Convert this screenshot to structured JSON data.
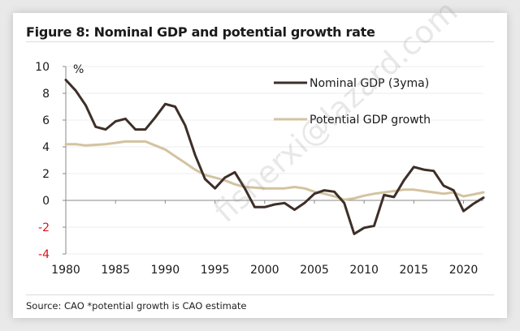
{
  "figure": {
    "title": "Figure 8: Nominal GDP and potential growth rate",
    "source": "Source: CAO *potential growth is CAO estimate",
    "watermark": "fisherxi@lazard.com"
  },
  "colors": {
    "nominal": "#3d2f28",
    "potential": "#d3c3a0",
    "negative_tick": "#e0101a",
    "gridline": "#ececec",
    "axis": "#8a8a8a"
  },
  "chart_data": {
    "type": "line",
    "title": "Figure 8: Nominal GDP and potential growth rate",
    "xlabel": "",
    "ylabel": "%",
    "ylim": [
      -4,
      10
    ],
    "xlim": [
      1980,
      2022
    ],
    "yticks": [
      "10",
      "8",
      "6",
      "4",
      "2",
      "0",
      "-2",
      "-4"
    ],
    "ytick_values": [
      10,
      8,
      6,
      4,
      2,
      0,
      -2,
      -4
    ],
    "xticks": [
      "1980",
      "1985",
      "1990",
      "1995",
      "2000",
      "2005",
      "2010",
      "2015",
      "2020"
    ],
    "xtick_values": [
      1980,
      1985,
      1990,
      1995,
      2000,
      2005,
      2010,
      2015,
      2020
    ],
    "grid": true,
    "legend_position": "top-right",
    "x": [
      1980,
      1981,
      1982,
      1983,
      1984,
      1985,
      1986,
      1987,
      1988,
      1989,
      1990,
      1991,
      1992,
      1993,
      1994,
      1995,
      1996,
      1997,
      1998,
      1999,
      2000,
      2001,
      2002,
      2003,
      2004,
      2005,
      2006,
      2007,
      2008,
      2009,
      2010,
      2011,
      2012,
      2013,
      2014,
      2015,
      2016,
      2017,
      2018,
      2019,
      2020,
      2021,
      2022
    ],
    "series": [
      {
        "name": "Nominal GDP (3yma)",
        "values": [
          9.0,
          8.2,
          7.1,
          5.5,
          5.3,
          5.9,
          6.1,
          5.3,
          5.3,
          6.2,
          7.2,
          7.0,
          5.6,
          3.4,
          1.6,
          0.9,
          1.7,
          2.1,
          0.9,
          -0.5,
          -0.5,
          -0.3,
          -0.2,
          -0.7,
          -0.2,
          0.5,
          0.75,
          0.65,
          -0.2,
          -2.5,
          -2.05,
          -1.9,
          0.4,
          0.25,
          1.5,
          2.5,
          2.3,
          2.2,
          1.1,
          0.75,
          -0.8,
          -0.25,
          0.2
        ]
      },
      {
        "name": "Potential GDP growth",
        "values": [
          4.2,
          4.2,
          4.1,
          4.15,
          4.2,
          4.3,
          4.4,
          4.4,
          4.4,
          4.1,
          3.8,
          3.3,
          2.8,
          2.3,
          1.9,
          1.7,
          1.5,
          1.2,
          1.0,
          0.95,
          0.9,
          0.9,
          0.9,
          1.0,
          0.9,
          0.65,
          0.5,
          0.3,
          0.05,
          0.15,
          0.35,
          0.5,
          0.6,
          0.7,
          0.8,
          0.8,
          0.7,
          0.6,
          0.5,
          0.6,
          0.3,
          0.45,
          0.6
        ]
      }
    ]
  }
}
